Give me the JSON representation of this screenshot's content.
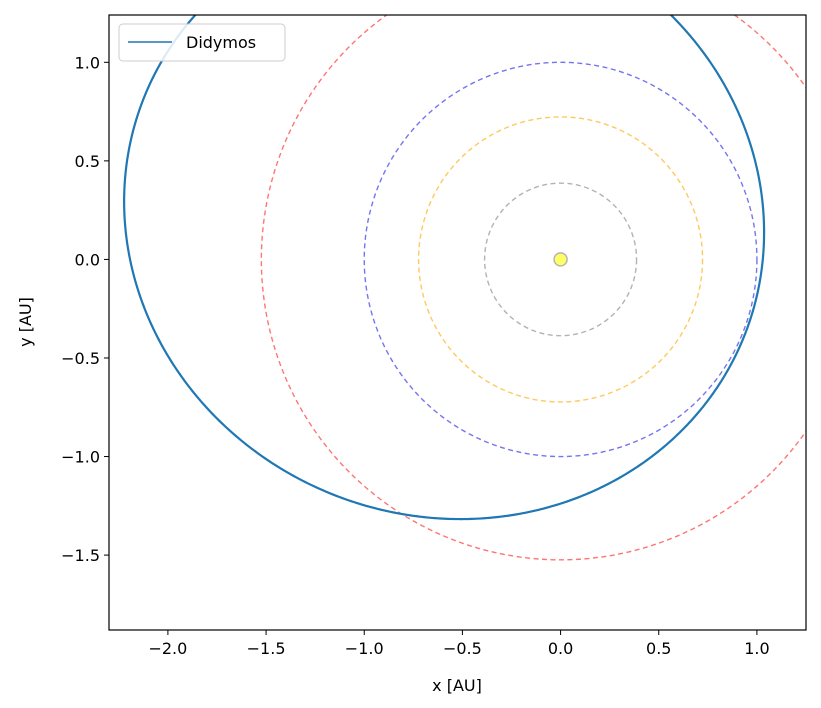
{
  "chart_data": {
    "type": "line",
    "xlabel": "x [AU]",
    "ylabel": "y [AU]",
    "xlim": [
      -2.3,
      1.25
    ],
    "ylim": [
      -1.88,
      1.24
    ],
    "aspect": "equal",
    "grid": false,
    "legend": {
      "placement": "top-left",
      "entries": [
        "Didymos"
      ]
    },
    "x_ticks": [
      {
        "value": -2.0,
        "label": "−2.0"
      },
      {
        "value": -1.5,
        "label": "−1.5"
      },
      {
        "value": -1.0,
        "label": "−1.0"
      },
      {
        "value": -0.5,
        "label": "−0.5"
      },
      {
        "value": 0.0,
        "label": "0.0"
      },
      {
        "value": 0.5,
        "label": "0.5"
      },
      {
        "value": 1.0,
        "label": "1.0"
      }
    ],
    "y_ticks": [
      {
        "value": 1.0,
        "label": "1.0"
      },
      {
        "value": 0.5,
        "label": "0.5"
      },
      {
        "value": 0.0,
        "label": "0.0"
      },
      {
        "value": -0.5,
        "label": "−0.5"
      },
      {
        "value": -1.0,
        "label": "−1.0"
      },
      {
        "value": -1.5,
        "label": "−1.5"
      }
    ],
    "series": [
      {
        "name": "Didymos",
        "style": "solid",
        "color": "#1f77b4",
        "orbit": {
          "semi_major_axis": 1.644,
          "eccentricity": 0.384,
          "perihelion_longitude_deg": 340,
          "focus": [
            0,
            0
          ]
        }
      }
    ],
    "reference_orbits": [
      {
        "radius": 0.387,
        "color": "#aaaaaa",
        "style": "dashed"
      },
      {
        "radius": 0.723,
        "color": "#ffc34d",
        "style": "dashed"
      },
      {
        "radius": 1.0,
        "color": "#6666ee",
        "style": "dashed"
      },
      {
        "radius": 1.524,
        "color": "#ff6666",
        "style": "dashed"
      }
    ],
    "sun": {
      "x": 0,
      "y": 0,
      "color": "#ffff66",
      "edge_color": "#b5b5b5"
    }
  }
}
